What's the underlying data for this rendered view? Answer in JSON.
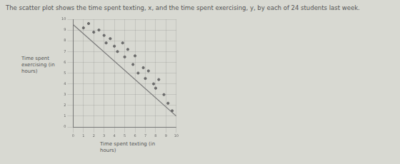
{
  "chart_data": {
    "type": "scatter",
    "title": "The scatter plot shows the time spent texting, x, and the time spent exercising, y, by each of 24 students last week.",
    "x_label": "Time spent texting (in hours)",
    "y_label": "Time spent exercising (in hours)",
    "series": [
      {
        "type": "scatter",
        "color": "#6a6a6a",
        "x": [
          1,
          1.5,
          2,
          2.5,
          3,
          3.2,
          3.6,
          4,
          4.3,
          4.8,
          5,
          5.3,
          5.8,
          6,
          6.3,
          6.8,
          7,
          7.3,
          7.8,
          8,
          8.3,
          8.8,
          9.2,
          9.6
        ],
        "values": [
          9.2,
          9.6,
          8.8,
          9,
          8.5,
          7.8,
          8.2,
          7.5,
          7,
          7.8,
          6.5,
          7.2,
          5.8,
          6.6,
          5,
          5.5,
          4.5,
          5.2,
          4,
          3.6,
          4.4,
          3,
          2.2,
          1.5
        ]
      },
      {
        "type": "line",
        "color": "#7a7a7a",
        "x": [
          0,
          10
        ],
        "values": [
          9.5,
          1
        ]
      }
    ],
    "xlim": [
      0,
      10
    ],
    "xticks": [
      0,
      1,
      2,
      3,
      4,
      5,
      6,
      7,
      8,
      9,
      10
    ],
    "ylim": [
      0,
      10
    ],
    "yticks": [
      0,
      1,
      2,
      3,
      4,
      5,
      6,
      7,
      8,
      9,
      10
    ],
    "grid": true
  }
}
